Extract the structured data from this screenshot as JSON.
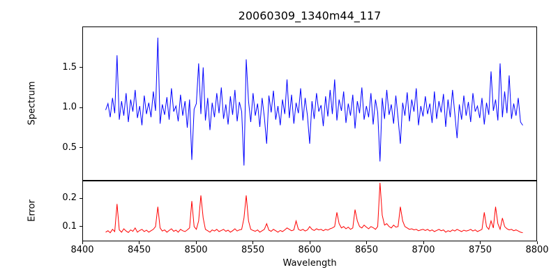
{
  "title": "20060309_1340m44_117",
  "chart_data": {
    "type": "line",
    "title": "20060309_1340m44_117",
    "xlabel": "Wavelength",
    "xlim": [
      8400,
      8800
    ],
    "grid": false,
    "legend": "none",
    "xtick_values": [
      8400,
      8450,
      8500,
      8550,
      8600,
      8650,
      8700,
      8750,
      8800
    ],
    "xtick_labels": [
      "8400",
      "8450",
      "8500",
      "8550",
      "8600",
      "8650",
      "8700",
      "8750",
      "8800"
    ],
    "subplots": [
      {
        "name": "spectrum",
        "ylabel": "Spectrum",
        "ylim": [
          0.1,
          2.0
        ],
        "ytick_values": [
          0.5,
          1.0,
          1.5
        ],
        "ytick_labels": [
          "0.5",
          "1.0",
          "1.5"
        ],
        "line_color": "#0000ff"
      },
      {
        "name": "error",
        "ylabel": "Error",
        "ylim": [
          0.05,
          0.26
        ],
        "ytick_values": [
          0.1,
          0.2
        ],
        "ytick_labels": [
          "0.1",
          "0.2"
        ],
        "line_color": "#ff0000"
      }
    ],
    "x": [
      8420,
      8422,
      8424,
      8426,
      8428,
      8430,
      8432,
      8434,
      8436,
      8438,
      8440,
      8442,
      8444,
      8446,
      8448,
      8450,
      8452,
      8454,
      8456,
      8458,
      8460,
      8462,
      8464,
      8466,
      8468,
      8470,
      8472,
      8474,
      8476,
      8478,
      8480,
      8482,
      8484,
      8486,
      8488,
      8490,
      8492,
      8494,
      8496,
      8498,
      8500,
      8502,
      8504,
      8506,
      8508,
      8510,
      8512,
      8514,
      8516,
      8518,
      8520,
      8522,
      8524,
      8526,
      8528,
      8530,
      8532,
      8534,
      8536,
      8538,
      8540,
      8542,
      8544,
      8546,
      8548,
      8550,
      8552,
      8554,
      8556,
      8558,
      8560,
      8562,
      8564,
      8566,
      8568,
      8570,
      8572,
      8574,
      8576,
      8578,
      8580,
      8582,
      8584,
      8586,
      8588,
      8590,
      8592,
      8594,
      8596,
      8598,
      8600,
      8602,
      8604,
      8606,
      8608,
      8610,
      8612,
      8614,
      8616,
      8618,
      8620,
      8622,
      8624,
      8626,
      8628,
      8630,
      8632,
      8634,
      8636,
      8638,
      8640,
      8642,
      8644,
      8646,
      8648,
      8650,
      8652,
      8654,
      8656,
      8658,
      8660,
      8662,
      8664,
      8666,
      8668,
      8670,
      8672,
      8674,
      8676,
      8678,
      8680,
      8682,
      8684,
      8686,
      8688,
      8690,
      8692,
      8694,
      8696,
      8698,
      8700,
      8702,
      8704,
      8706,
      8708,
      8710,
      8712,
      8714,
      8716,
      8718,
      8720,
      8722,
      8724,
      8726,
      8728,
      8730,
      8732,
      8734,
      8736,
      8738,
      8740,
      8742,
      8744,
      8746,
      8748,
      8750,
      8752,
      8754,
      8756,
      8758,
      8760,
      8762,
      8764,
      8766,
      8768,
      8770,
      8772,
      8774,
      8776,
      8778,
      8780,
      8782,
      8784,
      8786,
      8788
    ],
    "series": [
      {
        "name": "spectrum",
        "values": [
          0.97,
          1.05,
          0.88,
          1.12,
          0.93,
          1.65,
          0.85,
          1.08,
          0.9,
          1.18,
          0.82,
          1.1,
          0.95,
          1.22,
          0.87,
          1.02,
          0.78,
          1.15,
          0.92,
          1.06,
          0.88,
          1.2,
          0.96,
          1.87,
          0.8,
          1.04,
          0.91,
          1.13,
          0.85,
          1.24,
          0.95,
          1.02,
          0.83,
          1.16,
          0.9,
          1.08,
          0.75,
          1.1,
          0.35,
          0.98,
          1.05,
          1.55,
          0.92,
          1.5,
          0.84,
          1.12,
          0.72,
          1.06,
          0.88,
          1.18,
          0.93,
          1.25,
          0.86,
          1.04,
          0.79,
          1.14,
          0.91,
          1.22,
          0.83,
          1.07,
          0.95,
          0.28,
          1.6,
          1.08,
          0.82,
          1.18,
          0.9,
          1.05,
          0.76,
          1.12,
          0.88,
          0.55,
          1.15,
          0.94,
          1.21,
          0.85,
          1.02,
          0.78,
          1.1,
          0.92,
          1.35,
          0.87,
          1.16,
          0.8,
          1.06,
          0.93,
          1.24,
          0.84,
          1.12,
          0.9,
          0.55,
          1.08,
          0.86,
          1.18,
          0.95,
          1.03,
          0.77,
          1.14,
          0.89,
          1.22,
          0.92,
          1.35,
          0.84,
          1.1,
          0.96,
          1.2,
          0.81,
          1.05,
          0.9,
          1.16,
          0.74,
          1.08,
          0.93,
          1.25,
          0.85,
          1.02,
          0.88,
          1.18,
          0.79,
          1.1,
          0.94,
          0.33,
          1.12,
          0.86,
          1.22,
          0.91,
          1.04,
          0.8,
          1.15,
          0.87,
          0.55,
          1.06,
          0.9,
          1.19,
          0.83,
          1.1,
          0.95,
          1.24,
          0.78,
          1.02,
          0.89,
          1.14,
          0.92,
          1.05,
          0.81,
          1.2,
          0.86,
          1.08,
          0.94,
          1.17,
          0.76,
          1.1,
          0.88,
          1.22,
          0.93,
          0.62,
          1.04,
          0.85,
          1.15,
          0.9,
          1.07,
          0.82,
          1.18,
          0.95,
          1.02,
          0.87,
          1.12,
          0.79,
          1.06,
          0.91,
          1.45,
          0.96,
          1.1,
          0.84,
          1.55,
          0.88,
          1.2,
          0.93,
          1.4,
          0.86,
          1.05,
          0.9,
          1.12,
          0.82,
          0.78
        ]
      },
      {
        "name": "error",
        "values": [
          0.08,
          0.085,
          0.078,
          0.09,
          0.082,
          0.18,
          0.088,
          0.08,
          0.092,
          0.084,
          0.079,
          0.088,
          0.083,
          0.095,
          0.08,
          0.086,
          0.09,
          0.082,
          0.087,
          0.08,
          0.085,
          0.09,
          0.1,
          0.17,
          0.095,
          0.084,
          0.088,
          0.08,
          0.086,
          0.092,
          0.083,
          0.087,
          0.08,
          0.09,
          0.085,
          0.082,
          0.088,
          0.095,
          0.19,
          0.1,
          0.09,
          0.12,
          0.21,
          0.13,
          0.09,
          0.085,
          0.08,
          0.088,
          0.084,
          0.09,
          0.082,
          0.086,
          0.09,
          0.083,
          0.087,
          0.08,
          0.085,
          0.092,
          0.084,
          0.088,
          0.09,
          0.13,
          0.21,
          0.12,
          0.09,
          0.086,
          0.083,
          0.088,
          0.08,
          0.085,
          0.09,
          0.11,
          0.087,
          0.083,
          0.09,
          0.085,
          0.08,
          0.086,
          0.082,
          0.088,
          0.095,
          0.09,
          0.085,
          0.088,
          0.12,
          0.09,
          0.086,
          0.09,
          0.084,
          0.088,
          0.1,
          0.09,
          0.086,
          0.092,
          0.088,
          0.09,
          0.085,
          0.09,
          0.087,
          0.092,
          0.095,
          0.1,
          0.15,
          0.11,
          0.095,
          0.1,
          0.092,
          0.098,
          0.09,
          0.095,
          0.16,
          0.12,
          0.1,
          0.095,
          0.105,
          0.098,
          0.092,
          0.1,
          0.096,
          0.09,
          0.1,
          0.255,
          0.14,
          0.105,
          0.11,
          0.1,
          0.095,
          0.105,
          0.098,
          0.1,
          0.17,
          0.12,
          0.1,
          0.095,
          0.09,
          0.092,
          0.088,
          0.09,
          0.085,
          0.088,
          0.09,
          0.086,
          0.09,
          0.084,
          0.088,
          0.082,
          0.086,
          0.09,
          0.085,
          0.088,
          0.08,
          0.085,
          0.082,
          0.088,
          0.084,
          0.09,
          0.086,
          0.082,
          0.087,
          0.084,
          0.086,
          0.09,
          0.084,
          0.088,
          0.082,
          0.086,
          0.09,
          0.15,
          0.1,
          0.09,
          0.12,
          0.095,
          0.17,
          0.11,
          0.09,
          0.13,
          0.1,
          0.092,
          0.088,
          0.09,
          0.085,
          0.088,
          0.084,
          0.08,
          0.078
        ]
      }
    ]
  }
}
